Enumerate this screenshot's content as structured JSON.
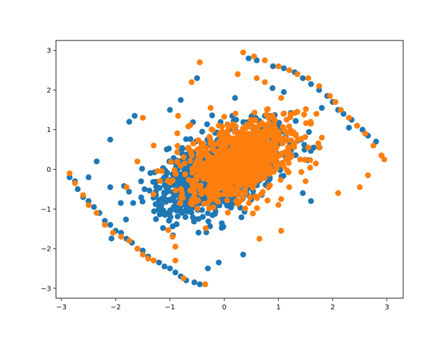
{
  "chart_data": {
    "type": "scatter",
    "title": "",
    "xlabel": "",
    "ylabel": "",
    "xlim": [
      -3.1,
      3.3
    ],
    "ylim": [
      -3.25,
      3.25
    ],
    "xticks": [
      -3,
      -2,
      -1,
      0,
      1,
      2,
      3
    ],
    "yticks": [
      -3,
      -2,
      -1,
      0,
      1,
      2,
      3
    ],
    "grid": false,
    "legend": "none",
    "series": [
      {
        "color": "#1f77b4",
        "seed": 7,
        "cluster": {
          "count": 1100,
          "cx": -0.1,
          "cy": -0.05,
          "sx": 0.55,
          "sy": 0.55,
          "rho": 0.55
        },
        "points": [
          [
            -2.85,
            -0.2
          ],
          [
            -2.75,
            -0.3
          ],
          [
            -2.7,
            -0.5
          ],
          [
            -2.6,
            -0.7
          ],
          [
            -2.5,
            -0.8
          ],
          [
            -2.4,
            -0.95
          ],
          [
            -2.3,
            -1.1
          ],
          [
            -2.2,
            -1.3
          ],
          [
            -2.1,
            -1.4
          ],
          [
            -2.0,
            -1.55
          ],
          [
            -1.9,
            -1.6
          ],
          [
            -1.8,
            -1.75
          ],
          [
            -1.7,
            -1.85
          ],
          [
            -1.6,
            -2.0
          ],
          [
            -1.5,
            -2.05
          ],
          [
            -1.4,
            -2.2
          ],
          [
            -1.3,
            -2.3
          ],
          [
            -1.2,
            -2.35
          ],
          [
            -1.1,
            -2.45
          ],
          [
            -1.0,
            -2.5
          ],
          [
            -0.9,
            -2.6
          ],
          [
            -0.8,
            -2.7
          ],
          [
            -0.7,
            -2.8
          ],
          [
            -0.55,
            -2.85
          ],
          [
            -0.45,
            -2.9
          ],
          [
            -0.3,
            -2.5
          ],
          [
            -0.1,
            -2.35
          ],
          [
            0.35,
            -2.15
          ],
          [
            -2.5,
            -0.2
          ],
          [
            -2.35,
            0.2
          ],
          [
            -2.1,
            0.75
          ],
          [
            -2.1,
            -0.45
          ],
          [
            -1.75,
            1.2
          ],
          [
            -1.65,
            1.35
          ],
          [
            -1.0,
            1.5
          ],
          [
            -0.8,
            1.75
          ],
          [
            -0.5,
            2.3
          ],
          [
            0.2,
            1.8
          ],
          [
            0.45,
            2.8
          ],
          [
            0.6,
            2.75
          ],
          [
            0.9,
            2.6
          ],
          [
            1.1,
            2.55
          ],
          [
            1.3,
            2.45
          ],
          [
            1.45,
            2.3
          ],
          [
            1.6,
            2.15
          ],
          [
            1.75,
            2.0
          ],
          [
            1.9,
            1.85
          ],
          [
            2.0,
            1.7
          ],
          [
            2.1,
            1.5
          ],
          [
            2.2,
            1.4
          ],
          [
            2.35,
            1.25
          ],
          [
            2.45,
            1.1
          ],
          [
            2.55,
            1.0
          ],
          [
            2.65,
            0.85
          ],
          [
            2.8,
            0.7
          ],
          [
            2.9,
            0.35
          ],
          [
            2.3,
            1.05
          ],
          [
            1.8,
            1.55
          ],
          [
            1.1,
            1.95
          ],
          [
            1.65,
            0.55
          ],
          [
            1.6,
            -0.8
          ],
          [
            1.45,
            -0.6
          ],
          [
            -0.5,
            -1.0
          ],
          [
            0.75,
            1.35
          ]
        ]
      },
      {
        "color": "#ff7f0e",
        "seed": 13,
        "cluster": {
          "count": 1000,
          "cx": 0.3,
          "cy": 0.25,
          "sx": 0.5,
          "sy": 0.5,
          "rho": 0.45
        },
        "points": [
          [
            -2.85,
            -0.1
          ],
          [
            -2.75,
            -0.35
          ],
          [
            -2.6,
            -0.65
          ],
          [
            -2.5,
            -0.9
          ],
          [
            -2.35,
            -1.1
          ],
          [
            -2.2,
            -1.4
          ],
          [
            -2.05,
            -1.6
          ],
          [
            -1.9,
            -1.7
          ],
          [
            -1.75,
            -1.8
          ],
          [
            -1.6,
            -2.0
          ],
          [
            -1.5,
            -2.15
          ],
          [
            -1.4,
            -2.25
          ],
          [
            -1.3,
            -2.3
          ],
          [
            -0.9,
            -2.3
          ],
          [
            -0.75,
            -2.75
          ],
          [
            -0.35,
            -2.9
          ],
          [
            -0.95,
            -1.7
          ],
          [
            -0.9,
            -1.95
          ],
          [
            -1.8,
            -0.45
          ],
          [
            -1.6,
            0.2
          ],
          [
            -1.5,
            1.3
          ],
          [
            -0.6,
            2.2
          ],
          [
            -0.45,
            2.7
          ],
          [
            0.25,
            2.4
          ],
          [
            0.35,
            2.95
          ],
          [
            0.55,
            2.85
          ],
          [
            0.75,
            2.75
          ],
          [
            1.0,
            2.6
          ],
          [
            1.2,
            2.5
          ],
          [
            1.35,
            2.4
          ],
          [
            1.55,
            2.3
          ],
          [
            1.75,
            2.1
          ],
          [
            1.95,
            1.85
          ],
          [
            2.05,
            1.7
          ],
          [
            2.15,
            1.5
          ],
          [
            2.3,
            1.3
          ],
          [
            2.45,
            1.1
          ],
          [
            2.6,
            0.9
          ],
          [
            2.75,
            0.6
          ],
          [
            2.9,
            0.35
          ],
          [
            2.95,
            0.25
          ],
          [
            2.65,
            -0.15
          ],
          [
            2.5,
            -0.45
          ],
          [
            2.1,
            -0.6
          ],
          [
            1.8,
            0.8
          ],
          [
            1.7,
            1.4
          ],
          [
            1.6,
            1.15
          ],
          [
            1.35,
            1.45
          ],
          [
            1.05,
            1.8
          ],
          [
            0.75,
            2.2
          ],
          [
            0.6,
            2.3
          ],
          [
            1.2,
            -0.45
          ],
          [
            1.05,
            -0.75
          ],
          [
            1.0,
            -0.9
          ],
          [
            1.05,
            -1.55
          ],
          [
            0.65,
            -1.75
          ],
          [
            -0.85,
            1.35
          ],
          [
            -0.25,
            1.55
          ],
          [
            -1.3,
            0.6
          ],
          [
            1.4,
            0.25
          ],
          [
            1.55,
            0.55
          ],
          [
            1.5,
            -0.3
          ]
        ]
      }
    ]
  }
}
